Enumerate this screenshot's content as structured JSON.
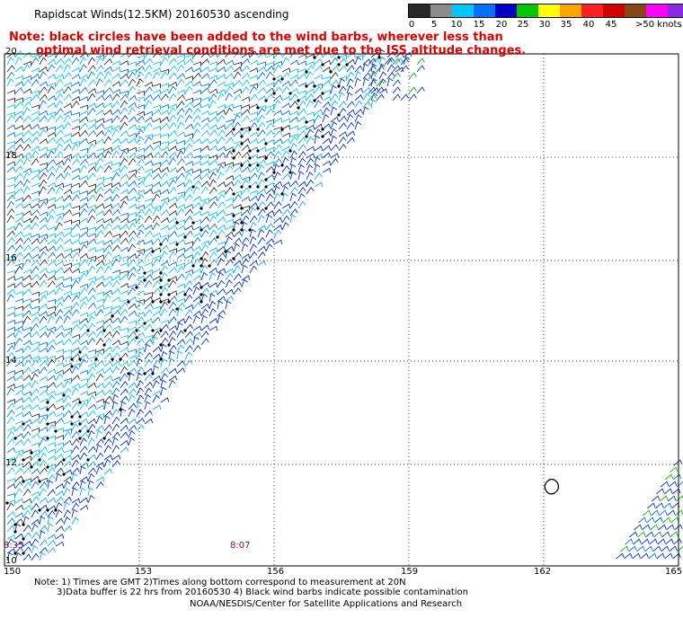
{
  "title": "Rapidscat Winds(12.5KM) 20160530 ascending",
  "note": {
    "line1": "Note: black circles have been added to the wind barbs, wherever less than",
    "line2": "optimal wind retrieval conditions are met due to the ISS altitude changes."
  },
  "legend": {
    "labels": [
      "0",
      "5",
      "10",
      "15",
      "20",
      "25",
      "30",
      "35",
      "40",
      "45",
      ">50 knots"
    ],
    "colors": [
      "#2a2a2a",
      "#8c8c8c",
      "#00c8ff",
      "#0070ff",
      "#0000c8",
      "#00c800",
      "#ffff00",
      "#ffa500",
      "#ff2020",
      "#d00000",
      "#8b4513",
      "#ff00ff",
      "#8a2be2",
      "#3a007a"
    ]
  },
  "axes": {
    "lon_labels": [
      "150",
      "153",
      "156",
      "159",
      "162",
      "165"
    ],
    "lat_labels": [
      "20",
      "18",
      "16",
      "14",
      "12",
      "10"
    ]
  },
  "time_labels": [
    "8:35",
    "8:07"
  ],
  "footer": {
    "line1": "Note: 1) Times are GMT 2)Times along bottom correspond to measurement at 20N",
    "line2": "3)Data buffer is 22 hrs from 20160530 4) Black wind barbs indicate possible contamination",
    "line3": "NOAA/NESDIS/Center for Satellite Applications and Research"
  }
}
